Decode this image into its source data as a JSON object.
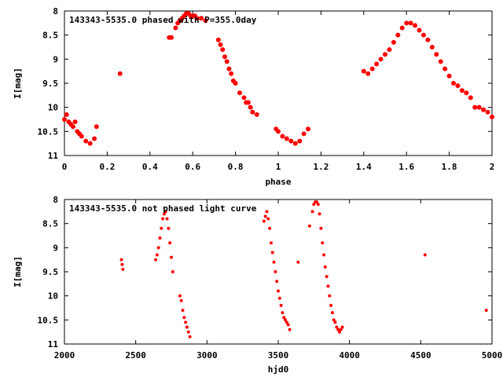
{
  "chart_data": [
    {
      "type": "scatter",
      "title": "143343-5535.0 phased with P=355.0day",
      "xlabel": "phase",
      "ylabel": "I[mag]",
      "xlim": [
        0,
        2
      ],
      "ylim": [
        11,
        8
      ],
      "y_inverted": true,
      "xticks": [
        "0",
        "0.2",
        "0.4",
        "0.6",
        "0.8",
        "1",
        "1.2",
        "1.4",
        "1.6",
        "1.8",
        "2"
      ],
      "xtick_values": [
        0,
        0.2,
        0.4,
        0.6,
        0.8,
        1.0,
        1.2,
        1.4,
        1.6,
        1.8,
        2.0
      ],
      "yticks": [
        "8",
        "8.5",
        "9",
        "9.5",
        "10",
        "10.5",
        "11"
      ],
      "ytick_values": [
        8,
        8.5,
        9,
        9.5,
        10,
        10.5,
        11
      ],
      "marker_color": "#ff0000",
      "x": [
        0.0,
        0.01,
        0.02,
        0.03,
        0.04,
        0.05,
        0.06,
        0.07,
        0.08,
        0.1,
        0.12,
        0.14,
        0.15,
        0.26,
        0.49,
        0.5,
        0.52,
        0.53,
        0.54,
        0.55,
        0.56,
        0.57,
        0.58,
        0.59,
        0.6,
        0.61,
        0.62,
        0.64,
        0.66,
        0.72,
        0.73,
        0.74,
        0.75,
        0.76,
        0.77,
        0.78,
        0.79,
        0.8,
        0.82,
        0.84,
        0.85,
        0.86,
        0.87,
        0.88,
        0.9,
        0.99,
        1.0,
        1.02,
        1.04,
        1.06,
        1.08,
        1.1,
        1.12,
        1.14,
        1.4,
        1.42,
        1.44,
        1.46,
        1.48,
        1.5,
        1.52,
        1.54,
        1.56,
        1.58,
        1.6,
        1.62,
        1.64,
        1.66,
        1.68,
        1.7,
        1.72,
        1.74,
        1.76,
        1.78,
        1.8,
        1.82,
        1.84,
        1.86,
        1.88,
        1.9,
        1.92,
        1.94,
        1.96,
        1.98,
        2.0
      ],
      "y": [
        10.25,
        10.15,
        10.3,
        10.35,
        10.4,
        10.3,
        10.5,
        10.55,
        10.6,
        10.7,
        10.75,
        10.65,
        10.4,
        9.3,
        8.55,
        8.55,
        8.35,
        8.25,
        8.2,
        8.15,
        8.1,
        8.05,
        8.05,
        8.1,
        8.1,
        8.1,
        8.15,
        8.15,
        8.2,
        8.6,
        8.7,
        8.8,
        8.95,
        9.05,
        9.2,
        9.3,
        9.45,
        9.5,
        9.7,
        9.8,
        9.9,
        9.9,
        10.0,
        10.1,
        10.15,
        10.45,
        10.5,
        10.6,
        10.65,
        10.7,
        10.75,
        10.7,
        10.55,
        10.45,
        9.25,
        9.3,
        9.2,
        9.1,
        9.0,
        8.9,
        8.8,
        8.65,
        8.5,
        8.35,
        8.25,
        8.25,
        8.3,
        8.4,
        8.5,
        8.6,
        8.75,
        8.9,
        9.05,
        9.2,
        9.35,
        9.5,
        9.55,
        9.65,
        9.7,
        9.8,
        10.0,
        10.0,
        10.05,
        10.1,
        10.2
      ]
    },
    {
      "type": "scatter",
      "title": "143343-5535.0 not phased light curve",
      "xlabel": "hjd0",
      "ylabel": "I[mag]",
      "xlim": [
        2000,
        5000
      ],
      "ylim": [
        11,
        8
      ],
      "y_inverted": true,
      "xticks": [
        "2000",
        "2500",
        "3000",
        "3500",
        "4000",
        "4500",
        "5000"
      ],
      "xtick_values": [
        2000,
        2500,
        3000,
        3500,
        4000,
        4500,
        5000
      ],
      "yticks": [
        "8",
        "8.5",
        "9",
        "9.5",
        "10",
        "10.5",
        "11"
      ],
      "ytick_values": [
        8,
        8.5,
        9,
        9.5,
        10,
        10.5,
        11
      ],
      "marker_color": "#ff0000",
      "x": [
        2400,
        2405,
        2410,
        2640,
        2650,
        2660,
        2670,
        2680,
        2690,
        2700,
        2710,
        2720,
        2730,
        2740,
        2750,
        2760,
        2810,
        2820,
        2830,
        2840,
        2850,
        2860,
        2870,
        2880,
        3400,
        3410,
        3420,
        3430,
        3440,
        3450,
        3460,
        3470,
        3480,
        3490,
        3500,
        3510,
        3520,
        3530,
        3540,
        3550,
        3560,
        3570,
        3580,
        3640,
        3720,
        3740,
        3750,
        3760,
        3770,
        3780,
        3790,
        3800,
        3810,
        3820,
        3830,
        3840,
        3850,
        3860,
        3870,
        3880,
        3890,
        3900,
        3910,
        3920,
        3930,
        3940,
        3950,
        4530,
        4960
      ],
      "y": [
        9.25,
        9.35,
        9.45,
        9.25,
        9.15,
        9.0,
        8.8,
        8.6,
        8.4,
        8.3,
        8.25,
        8.4,
        8.6,
        8.9,
        9.2,
        9.5,
        10.0,
        10.1,
        10.3,
        10.45,
        10.55,
        10.65,
        10.75,
        10.85,
        8.45,
        8.35,
        8.25,
        8.4,
        8.6,
        8.9,
        9.1,
        9.3,
        9.5,
        9.7,
        9.9,
        10.05,
        10.2,
        10.35,
        10.45,
        10.5,
        10.55,
        10.6,
        10.7,
        9.3,
        8.55,
        8.25,
        8.1,
        8.05,
        8.05,
        8.1,
        8.3,
        8.6,
        8.9,
        9.15,
        9.4,
        9.6,
        9.8,
        10.0,
        10.2,
        10.35,
        10.5,
        10.55,
        10.65,
        10.7,
        10.75,
        10.7,
        10.65,
        9.15,
        10.3
      ]
    }
  ]
}
